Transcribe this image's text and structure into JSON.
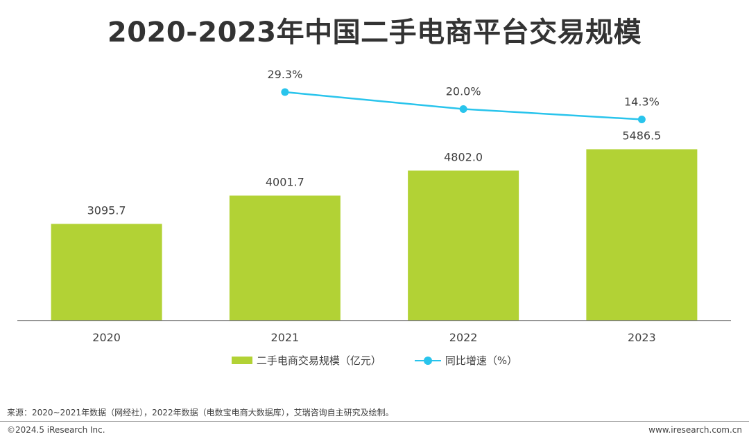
{
  "chart_data": {
    "type": "bar",
    "title": "2020-2023年中国二手电商平台交易规模",
    "categories": [
      "2020",
      "2021",
      "2022",
      "2023"
    ],
    "series": [
      {
        "name": "二手电商交易规模（亿元）",
        "type": "bar",
        "values": [
          3095.7,
          4001.7,
          4802.0,
          5486.5
        ],
        "labels": [
          "3095.7",
          "4001.7",
          "4802.0",
          "5486.5"
        ]
      },
      {
        "name": "同比增速（%）",
        "type": "line",
        "values": [
          null,
          29.3,
          20.0,
          14.3
        ],
        "labels": [
          "",
          "29.3%",
          "20.0%",
          "14.3%"
        ]
      }
    ],
    "legend_position": "bottom",
    "grid": false
  },
  "colors": {
    "bar": "#b2d235",
    "line": "#29c4ec",
    "axis": "#595959"
  },
  "footer": {
    "source": "来源：2020~2021年数据（网经社），2022年数据（电数宝电商大数据库），艾瑞咨询自主研究及绘制。",
    "copyright": "©2024.5 iResearch Inc.",
    "website": "www.iresearch.com.cn"
  }
}
